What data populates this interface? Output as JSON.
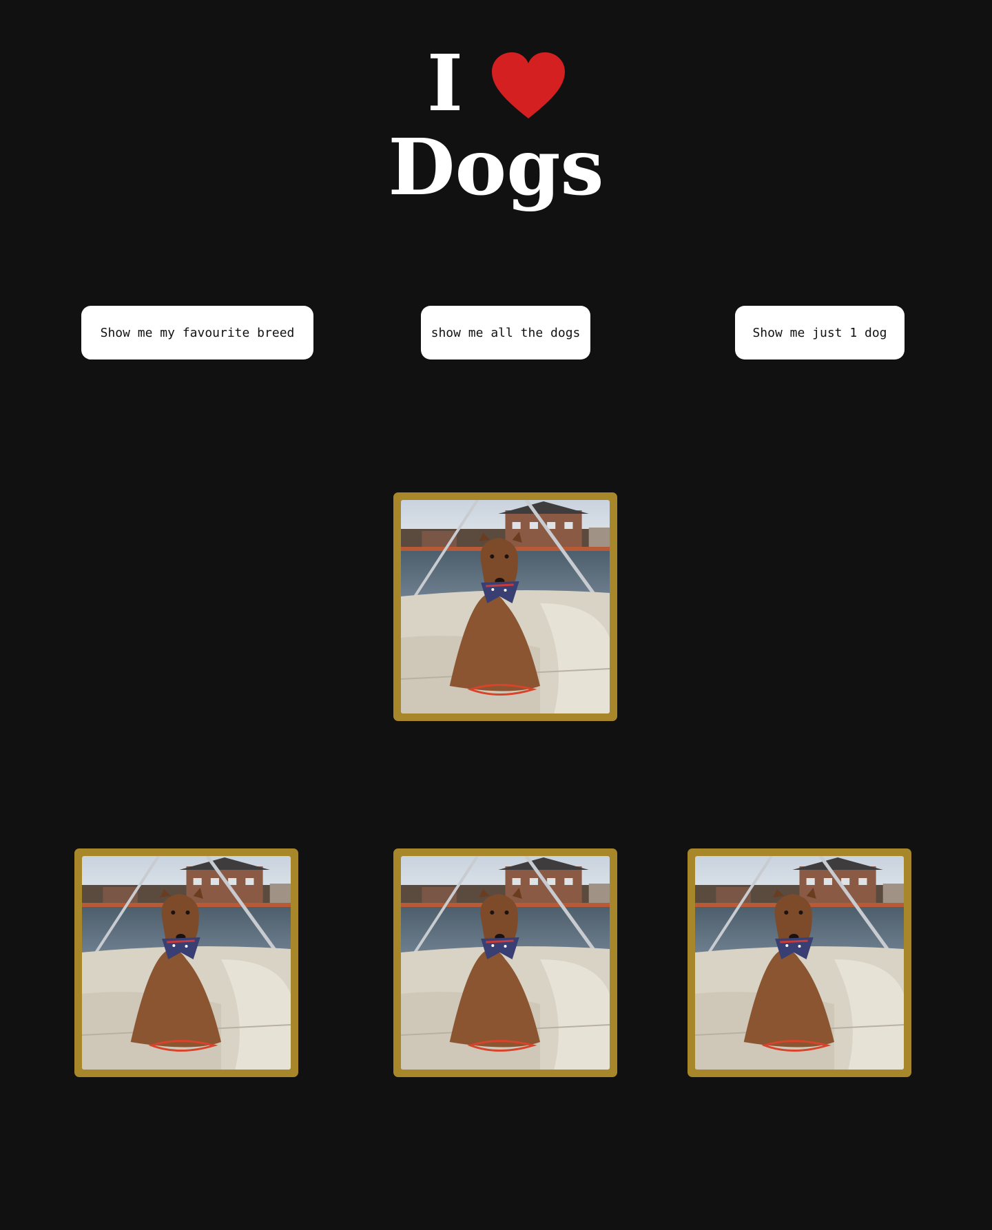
{
  "header": {
    "title_word_1": "I",
    "heart_icon": "heart-icon",
    "heart_color": "#d42020",
    "title_word_2": "Dogs"
  },
  "buttons": {
    "favourite_breed": "Show me my favourite breed",
    "all_dogs": "show me all the dogs",
    "one_dog": "Show me just 1 dog"
  },
  "colors": {
    "background": "#111111",
    "card_frame": "#a8872a",
    "button_bg": "#ffffff"
  },
  "gallery": {
    "featured": {
      "image": "dog-photo-airedale-on-boat"
    },
    "grid": [
      {
        "image": "dog-photo-airedale-on-boat"
      },
      {
        "image": "dog-photo-airedale-on-boat"
      },
      {
        "image": "dog-photo-airedale-on-boat"
      }
    ]
  }
}
